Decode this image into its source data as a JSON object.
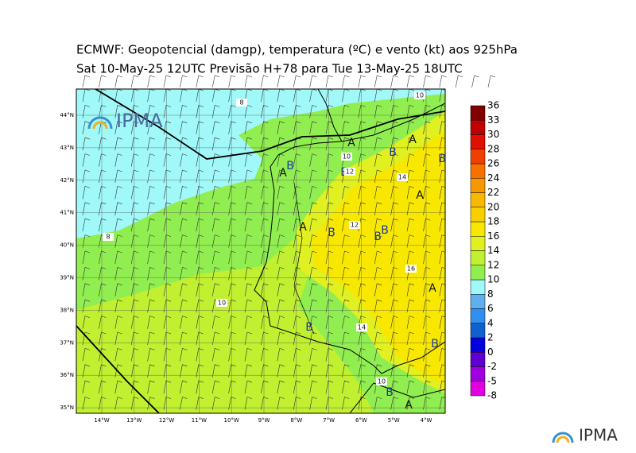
{
  "title": [
    "ECMWF:  Geopotencial (damgp), temperatura (ºC) e vento (kt) aos 925hPa",
    "Sat 10-May-25 12UTC Previsão H+78 para Tue 13-May-25 18UTC"
  ],
  "logo": [
    "IPMA",
    "IPMA"
  ],
  "lat_labels": [
    "44°N",
    "43°N",
    "42°N",
    "41°N",
    "40°N",
    "39°N",
    "38°N",
    "37°N",
    "36°N",
    "35°N"
  ],
  "lon_labels": [
    "14°W",
    "13°W",
    "12°W",
    "11°W",
    "10°W",
    "9°W",
    "8°W",
    "7°W",
    "6°W",
    "5°W",
    "4°W"
  ],
  "map_labels": [
    "A",
    "B",
    "A",
    "B",
    "B",
    "A",
    "B",
    "12",
    "10",
    "14",
    "A",
    "A",
    "B",
    "B",
    "B",
    "12",
    "16",
    "A",
    "8",
    "8",
    "10",
    "B",
    "14",
    "B",
    "B",
    "A",
    "10",
    "10"
  ],
  "colorbar": {
    "levels": [
      -8,
      -5,
      -2,
      0,
      2,
      4,
      6,
      8,
      10,
      12,
      14,
      16,
      18,
      20,
      22,
      24,
      26,
      28,
      30,
      33,
      36
    ],
    "colors": [
      "#e000e0",
      "#a000e0",
      "#6000d0",
      "#0000e0",
      "#1060d0",
      "#3090f0",
      "#60b0f0",
      "#a0f8f8",
      "#90ee50",
      "#c0f030",
      "#e0f020",
      "#f8e800",
      "#f8d000",
      "#f8b800",
      "#f89800",
      "#f87000",
      "#f04000",
      "#e01000",
      "#c00000",
      "#800000"
    ]
  }
}
